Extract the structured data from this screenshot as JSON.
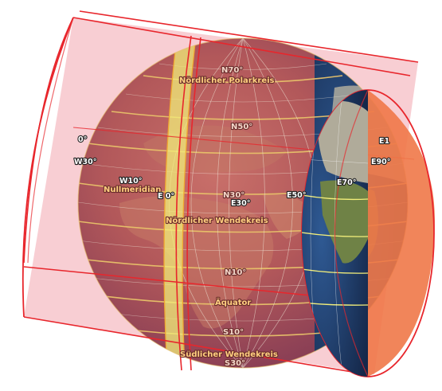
{
  "map": {
    "projection_surface": "cylinder",
    "colors": {
      "cylinder_fill": "#f2a6ae",
      "cylinder_edge": "#e8262c",
      "cylinder_cap": "#f07848",
      "graticule": "#e8c26a",
      "highlight_band": "#f2ee7a",
      "ocean": "#1f3d6e"
    },
    "latitude_labels": {
      "n70": "N70°",
      "n50": "N50°",
      "n30": "N30°",
      "n10": "N10°",
      "s10": "S10°",
      "s30": "S30°"
    },
    "longitude_labels": {
      "w30": "W30°",
      "w10": "W10°",
      "e0": "E 0°",
      "e30": "E30°",
      "e50": "E50°",
      "e70": "E70°",
      "e90": "E90°",
      "e110": "E1",
      "w50_partial": "0°"
    },
    "named_lines": {
      "arctic_circle": "Nördlicher Polarkreis",
      "prime_meridian": "Nullmeridian",
      "tropic_cancer": "Nördlicher Wendekreis",
      "equator": "Äquator",
      "tropic_capricorn": "Südlicher Wendekreis"
    }
  }
}
